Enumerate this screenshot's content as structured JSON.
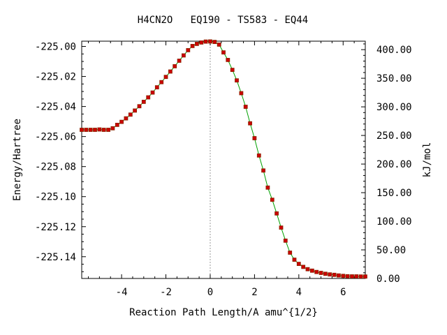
{
  "chart_data": {
    "type": "line",
    "title": "H4CN2O   EQ190 - TS583 - EQ44",
    "xlabel": "Reaction Path Length/A amu^{1/2}",
    "ylabel": "Energy/Hartree",
    "y2label": "kJ/mol",
    "xlim": [
      -5.8,
      7.0
    ],
    "ylim": [
      -225.1545,
      -224.9965
    ],
    "y2lim": [
      0.0,
      414.8
    ],
    "x_ticks": [
      -4,
      -2,
      0,
      2,
      4,
      6
    ],
    "x_tick_labels": [
      "-4",
      "-2",
      "0",
      "2",
      "4",
      "6"
    ],
    "y_ticks": [
      -225.0,
      -225.02,
      -225.04,
      -225.06,
      -225.08,
      -225.1,
      -225.12,
      -225.14
    ],
    "y_tick_labels": [
      "-225.00",
      "-225.02",
      "-225.04",
      "-225.06",
      "-225.08",
      "-225.10",
      "-225.12",
      "-225.14"
    ],
    "y2_ticks": [
      400,
      350,
      300,
      250,
      200,
      150,
      100,
      50,
      0
    ],
    "y2_tick_labels": [
      "400.00",
      "350.00",
      "300.00",
      "250.00",
      "200.00",
      "150.00",
      "100.00",
      "50.00",
      "0.00"
    ],
    "ts_marker_x": 0,
    "line_color": "#00a000",
    "marker_color": "#cc0000",
    "marker_edge_color": "#8a2500",
    "series": [
      {
        "x": [
          -5.8,
          -5.6,
          -5.4,
          -5.2,
          -5.0,
          -4.8,
          -4.6,
          -4.4,
          -4.2,
          -4.0,
          -3.8,
          -3.6,
          -3.4,
          -3.2,
          -3.0,
          -2.8,
          -2.6,
          -2.4,
          -2.2,
          -2.0,
          -1.8,
          -1.6,
          -1.4,
          -1.2,
          -1.0,
          -0.8,
          -0.6,
          -0.4,
          -0.2,
          0.0,
          0.2,
          0.4,
          0.6,
          0.8,
          1.0,
          1.2,
          1.4,
          1.6,
          1.8,
          2.0,
          2.2,
          2.4,
          2.6,
          2.8,
          3.0,
          3.2,
          3.4,
          3.6,
          3.8,
          4.0,
          4.2,
          4.4,
          4.6,
          4.8,
          5.0,
          5.2,
          5.4,
          5.6,
          5.8,
          6.0,
          6.2,
          6.4,
          6.6,
          6.8,
          7.0
        ],
        "y": [
          -225.0555,
          -225.0555,
          -225.0555,
          -225.0555,
          -225.0553,
          -225.0555,
          -225.0555,
          -225.0545,
          -225.0522,
          -225.0502,
          -225.0479,
          -225.0454,
          -225.0427,
          -225.0398,
          -225.0369,
          -225.0339,
          -225.0307,
          -225.0272,
          -225.0238,
          -225.0203,
          -225.0167,
          -225.0132,
          -225.0095,
          -225.006,
          -225.0025,
          -224.9997,
          -224.9983,
          -224.9974,
          -224.9968,
          -224.9967,
          -224.997,
          -224.9988,
          -225.004,
          -225.009,
          -225.0156,
          -225.0226,
          -225.0311,
          -225.0402,
          -225.0512,
          -225.0611,
          -225.0726,
          -225.0826,
          -225.094,
          -225.1021,
          -225.1112,
          -225.1206,
          -225.1293,
          -225.1373,
          -225.142,
          -225.1448,
          -225.1468,
          -225.1483,
          -225.1493,
          -225.1502,
          -225.1508,
          -225.1514,
          -225.1518,
          -225.1521,
          -225.1525,
          -225.1528,
          -225.153,
          -225.1531,
          -225.1531,
          -225.1532,
          -225.1532
        ]
      }
    ]
  }
}
